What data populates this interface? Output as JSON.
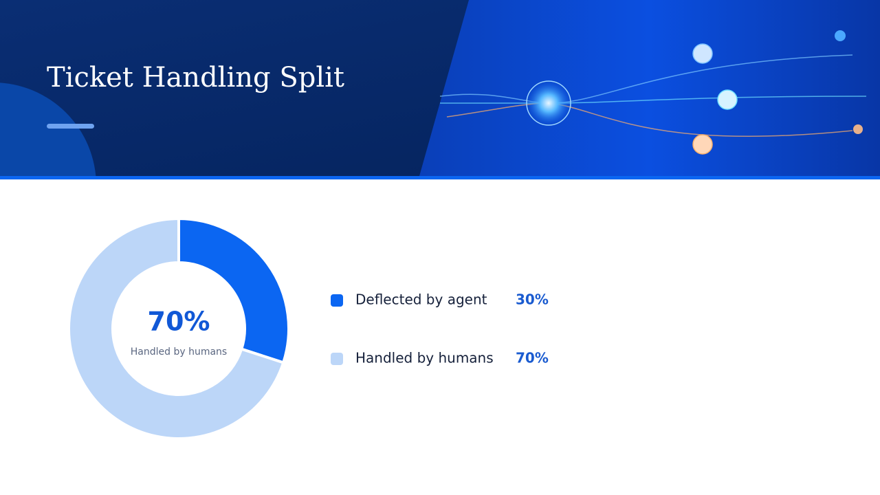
{
  "chart_data": {
    "type": "donut",
    "title": "Ticket Handling Split",
    "categories": [
      "Deflected by agent",
      "Handled by humans"
    ],
    "values": [
      30,
      70
    ],
    "value_labels": [
      "30%",
      "70%"
    ],
    "colors": [
      "#0b66f2",
      "#bcd6f8"
    ]
  }
}
